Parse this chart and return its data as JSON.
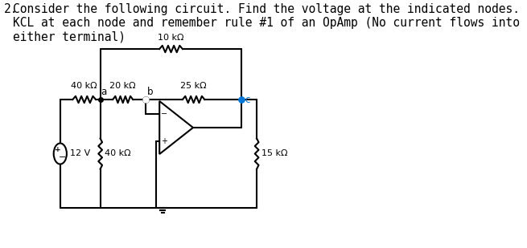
{
  "title_number": "2.",
  "title_text": "Consider the following circuit. Find the voltage at the indicated nodes. Hint: apply\nKCL at each node and remember rule #1 of an OpAmp (No current flows into\neither terminal)",
  "background_color": "#ffffff",
  "line_color": "#000000",
  "node_color_c": "#0078d7",
  "text_color": "#000000",
  "R1": "40 kΩ",
  "R2": "20 kΩ",
  "R3": "25 kΩ",
  "R4": "10 kΩ",
  "R5": "40 kΩ",
  "R6": "15 kΩ",
  "voltage_source": "12 V",
  "font_size_title": 10.5,
  "font_size_circuit": 8.5
}
